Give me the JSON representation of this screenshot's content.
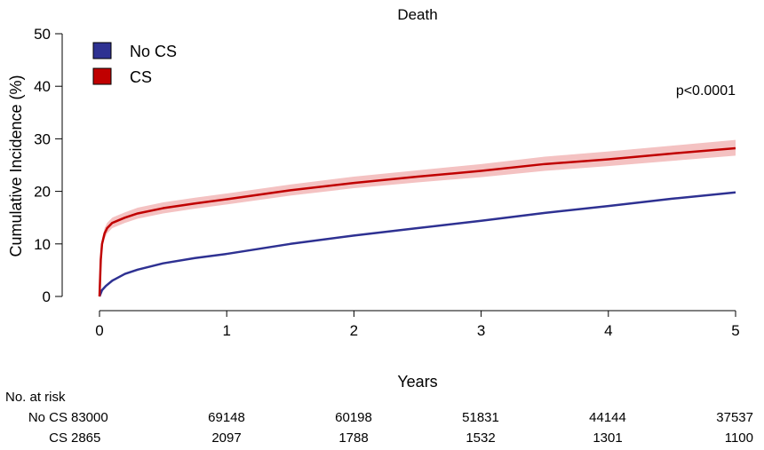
{
  "chart_data": {
    "type": "line",
    "title": "Death",
    "xlabel": "Years",
    "ylabel": "Cumulative Incidence (%)",
    "xlim": [
      0,
      5
    ],
    "ylim": [
      0,
      50
    ],
    "x_ticks": [
      0,
      1,
      2,
      3,
      4,
      5
    ],
    "y_ticks": [
      0,
      10,
      20,
      30,
      40,
      50
    ],
    "grid": false,
    "legend_position": "top-left",
    "annotation": "p<0.0001",
    "series": [
      {
        "name": "No CS",
        "color": "#2e3192",
        "x": [
          0,
          0.02,
          0.05,
          0.1,
          0.2,
          0.3,
          0.5,
          0.75,
          1,
          1.5,
          2,
          2.5,
          3,
          3.5,
          4,
          4.5,
          5
        ],
        "y": [
          0,
          1.2,
          2.0,
          3.0,
          4.3,
          5.1,
          6.3,
          7.3,
          8.1,
          10.0,
          11.6,
          13.0,
          14.4,
          15.9,
          17.2,
          18.6,
          19.8
        ]
      },
      {
        "name": "CS",
        "color": "#c00000",
        "band_color": "#f4c2c2",
        "x": [
          0,
          0.01,
          0.02,
          0.04,
          0.06,
          0.1,
          0.2,
          0.3,
          0.5,
          0.75,
          1,
          1.5,
          2,
          2.5,
          3,
          3.5,
          4,
          4.5,
          5
        ],
        "y": [
          0,
          7.0,
          10.0,
          12.0,
          13.0,
          14.0,
          15.0,
          15.8,
          16.8,
          17.7,
          18.5,
          20.2,
          21.6,
          22.8,
          23.9,
          25.2,
          26.1,
          27.2,
          28.2
        ],
        "ci_lower": [
          0,
          6.2,
          9.1,
          11.0,
          12.0,
          13.0,
          14.0,
          14.8,
          15.8,
          16.7,
          17.5,
          19.2,
          20.6,
          21.7,
          22.7,
          23.9,
          24.8,
          25.8,
          26.8
        ],
        "ci_upper": [
          0,
          7.8,
          10.9,
          13.0,
          14.0,
          15.0,
          16.0,
          16.9,
          17.9,
          18.8,
          19.6,
          21.3,
          22.8,
          24.0,
          25.2,
          26.6,
          27.6,
          28.7,
          29.8
        ]
      }
    ]
  },
  "risk_table": {
    "title": "No. at risk",
    "rows": [
      {
        "label": "No CS",
        "values": [
          "83000",
          "69148",
          "60198",
          "51831",
          "44144",
          "37537"
        ]
      },
      {
        "label": "CS",
        "values": [
          "2865",
          "2097",
          "1788",
          "1532",
          "1301",
          "1100"
        ]
      }
    ]
  }
}
